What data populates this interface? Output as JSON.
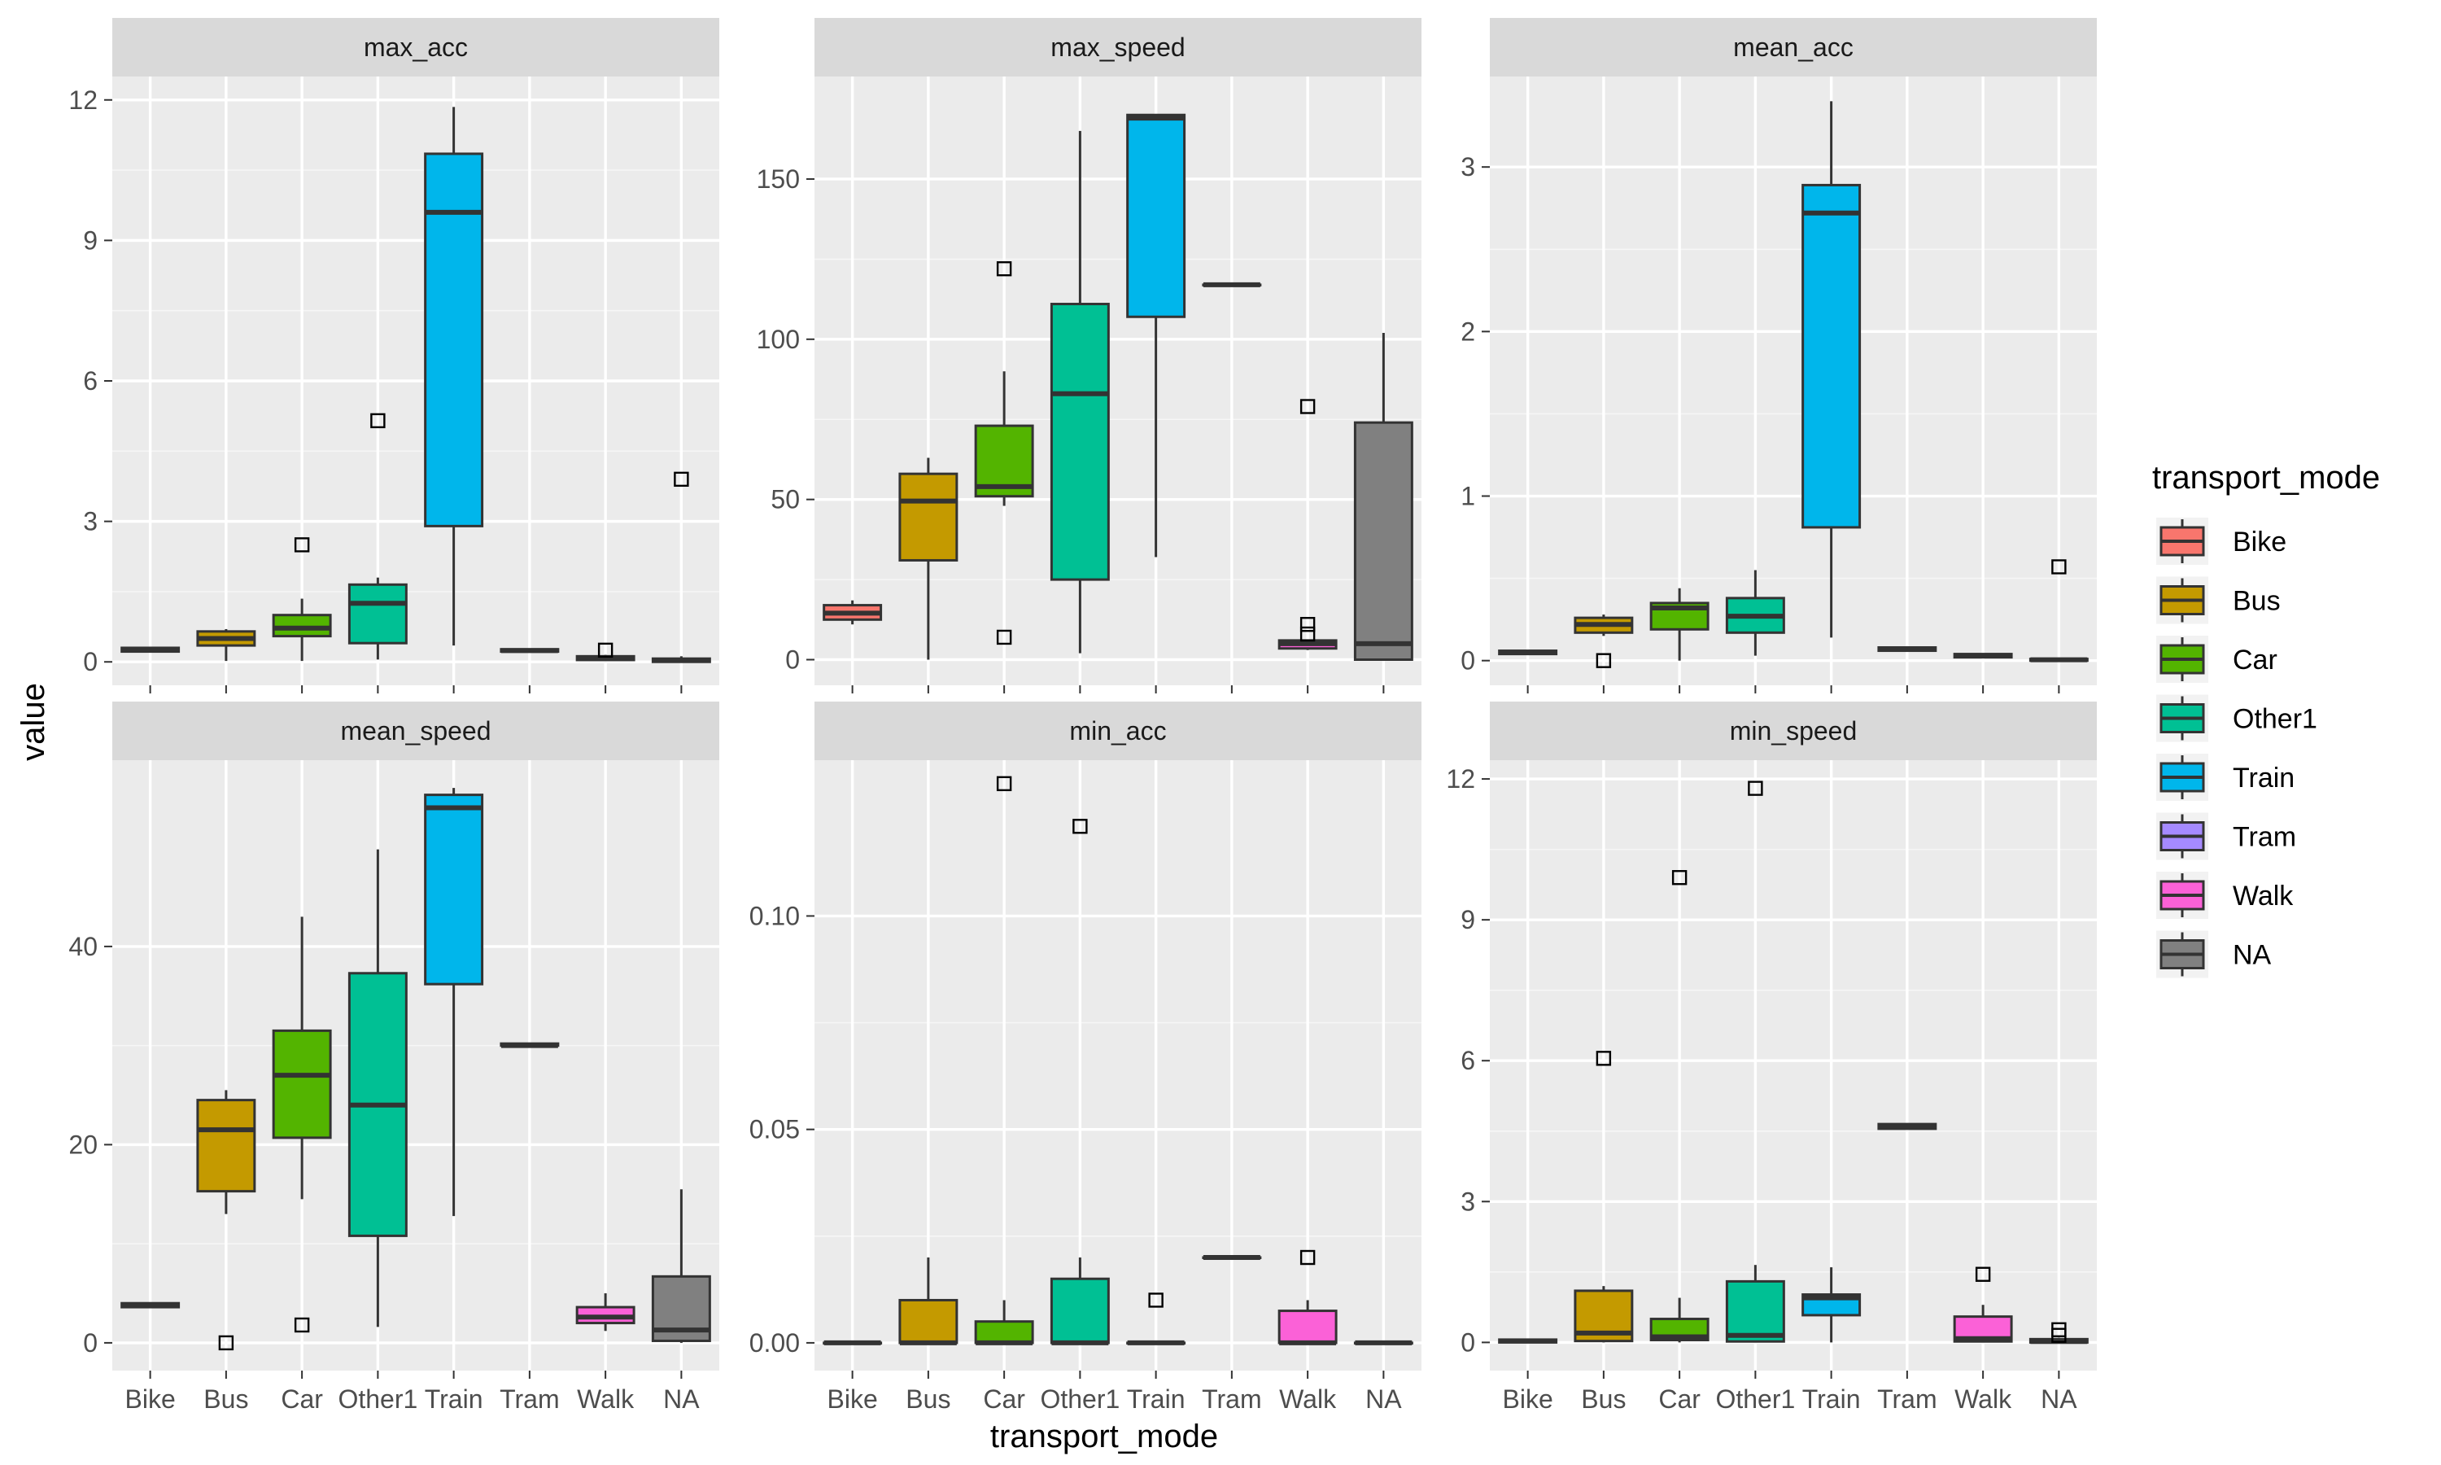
{
  "chart_data": {
    "type": "boxplot",
    "facet_layout": "facet_wrap, 2 rows x 3 columns, free y scales",
    "xlabel": "transport_mode",
    "ylabel": "value",
    "categories": [
      "Bike",
      "Bus",
      "Car",
      "Other1",
      "Train",
      "Tram",
      "Walk",
      "NA"
    ],
    "legend": {
      "title": "transport_mode",
      "placement": "right",
      "items": [
        {
          "label": "Bike",
          "color": "#F8766D"
        },
        {
          "label": "Bus",
          "color": "#C49A00"
        },
        {
          "label": "Car",
          "color": "#53B400"
        },
        {
          "label": "Other1",
          "color": "#00C094"
        },
        {
          "label": "Train",
          "color": "#00B6EB"
        },
        {
          "label": "Tram",
          "color": "#A58AFF"
        },
        {
          "label": "Walk",
          "color": "#FB61D7"
        },
        {
          "label": "NA",
          "color": "#808080"
        }
      ]
    },
    "style": {
      "panel_background": "#EBEBEB",
      "strip_background": "#D9D9D9",
      "grid_major": "#FFFFFF",
      "box_outline": "#333333",
      "grid": true
    },
    "panels": [
      {
        "title": "max_acc",
        "ylim": [
          -0.5,
          12.5
        ],
        "yticks": [
          0,
          3,
          6,
          9,
          12
        ],
        "yticklabels": [
          "0",
          "3",
          "6",
          "9",
          "12"
        ],
        "boxes": [
          {
            "mode": "Bike",
            "q1": 0.22,
            "median": 0.27,
            "q3": 0.3,
            "whisker_low": 0.22,
            "whisker_high": 0.3,
            "outliers": []
          },
          {
            "mode": "Bus",
            "q1": 0.35,
            "median": 0.5,
            "q3": 0.65,
            "whisker_low": 0.02,
            "whisker_high": 0.7,
            "outliers": []
          },
          {
            "mode": "Car",
            "q1": 0.55,
            "median": 0.72,
            "q3": 1.0,
            "whisker_low": 0.02,
            "whisker_high": 1.35,
            "outliers": [
              2.5
            ]
          },
          {
            "mode": "Other1",
            "q1": 0.4,
            "median": 1.25,
            "q3": 1.65,
            "whisker_low": 0.05,
            "whisker_high": 1.8,
            "outliers": [
              5.15
            ]
          },
          {
            "mode": "Train",
            "q1": 2.9,
            "median": 9.6,
            "q3": 10.85,
            "whisker_low": 0.35,
            "whisker_high": 11.85,
            "outliers": []
          },
          {
            "mode": "Tram",
            "q1": 0.22,
            "median": 0.24,
            "q3": 0.27,
            "whisker_low": 0.22,
            "whisker_high": 0.27,
            "outliers": []
          },
          {
            "mode": "Walk",
            "q1": 0.04,
            "median": 0.08,
            "q3": 0.12,
            "whisker_low": 0.02,
            "whisker_high": 0.15,
            "outliers": [
              0.25
            ]
          },
          {
            "mode": "NA",
            "q1": 0.0,
            "median": 0.03,
            "q3": 0.07,
            "whisker_low": 0.0,
            "whisker_high": 0.12,
            "outliers": [
              3.9
            ]
          }
        ]
      },
      {
        "title": "max_speed",
        "ylim": [
          -8,
          182
        ],
        "yticks": [
          0,
          50,
          100,
          150
        ],
        "yticklabels": [
          "0",
          "50",
          "100",
          "150"
        ],
        "boxes": [
          {
            "mode": "Bike",
            "q1": 12.5,
            "median": 14.5,
            "q3": 17.0,
            "whisker_low": 11.0,
            "whisker_high": 18.5,
            "outliers": []
          },
          {
            "mode": "Bus",
            "q1": 31,
            "median": 49.5,
            "q3": 58,
            "whisker_low": 0,
            "whisker_high": 63,
            "outliers": []
          },
          {
            "mode": "Car",
            "q1": 51,
            "median": 54,
            "q3": 73,
            "whisker_low": 48,
            "whisker_high": 90,
            "outliers": [
              7,
              122
            ]
          },
          {
            "mode": "Other1",
            "q1": 25,
            "median": 83,
            "q3": 111,
            "whisker_low": 2,
            "whisker_high": 165,
            "outliers": []
          },
          {
            "mode": "Train",
            "q1": 107,
            "median": 169,
            "q3": 170,
            "whisker_low": 32,
            "whisker_high": 170,
            "outliers": []
          },
          {
            "mode": "Tram",
            "q1": 117,
            "median": 117,
            "q3": 117,
            "whisker_low": 117,
            "whisker_high": 117,
            "outliers": []
          },
          {
            "mode": "Walk",
            "q1": 3.5,
            "median": 5,
            "q3": 6,
            "whisker_low": 3,
            "whisker_high": 6,
            "outliers": [
              8,
              11,
              79
            ]
          },
          {
            "mode": "NA",
            "q1": 0,
            "median": 5,
            "q3": 74,
            "whisker_low": 0,
            "whisker_high": 102,
            "outliers": []
          }
        ]
      },
      {
        "title": "mean_acc",
        "ylim": [
          -0.15,
          3.55
        ],
        "yticks": [
          0,
          1,
          2,
          3
        ],
        "yticklabels": [
          "0",
          "1",
          "2",
          "3"
        ],
        "boxes": [
          {
            "mode": "Bike",
            "q1": 0.04,
            "median": 0.05,
            "q3": 0.06,
            "whisker_low": 0.04,
            "whisker_high": 0.06,
            "outliers": []
          },
          {
            "mode": "Bus",
            "q1": 0.17,
            "median": 0.22,
            "q3": 0.26,
            "whisker_low": 0.15,
            "whisker_high": 0.28,
            "outliers": [
              0.0
            ]
          },
          {
            "mode": "Car",
            "q1": 0.19,
            "median": 0.32,
            "q3": 0.35,
            "whisker_low": 0.0,
            "whisker_high": 0.44,
            "outliers": []
          },
          {
            "mode": "Other1",
            "q1": 0.17,
            "median": 0.27,
            "q3": 0.38,
            "whisker_low": 0.03,
            "whisker_high": 0.55,
            "outliers": []
          },
          {
            "mode": "Train",
            "q1": 0.81,
            "median": 2.72,
            "q3": 2.89,
            "whisker_low": 0.14,
            "whisker_high": 3.4,
            "outliers": []
          },
          {
            "mode": "Tram",
            "q1": 0.06,
            "median": 0.07,
            "q3": 0.08,
            "whisker_low": 0.06,
            "whisker_high": 0.08,
            "outliers": []
          },
          {
            "mode": "Walk",
            "q1": 0.02,
            "median": 0.03,
            "q3": 0.04,
            "whisker_low": 0.02,
            "whisker_high": 0.04,
            "outliers": []
          },
          {
            "mode": "NA",
            "q1": 0.0,
            "median": 0.005,
            "q3": 0.01,
            "whisker_low": 0.0,
            "whisker_high": 0.01,
            "outliers": [
              0.57
            ]
          }
        ]
      },
      {
        "title": "mean_speed",
        "ylim": [
          -2.8,
          58.8
        ],
        "yticks": [
          0,
          20,
          40
        ],
        "yticklabels": [
          "0",
          "20",
          "40"
        ],
        "boxes": [
          {
            "mode": "Bike",
            "q1": 3.6,
            "median": 3.8,
            "q3": 4.0,
            "whisker_low": 3.6,
            "whisker_high": 4.0,
            "outliers": []
          },
          {
            "mode": "Bus",
            "q1": 15.3,
            "median": 21.5,
            "q3": 24.5,
            "whisker_low": 13.0,
            "whisker_high": 25.5,
            "outliers": [
              0.0
            ]
          },
          {
            "mode": "Car",
            "q1": 20.7,
            "median": 27.0,
            "q3": 31.5,
            "whisker_low": 14.5,
            "whisker_high": 43.0,
            "outliers": [
              1.8
            ]
          },
          {
            "mode": "Other1",
            "q1": 10.8,
            "median": 24.0,
            "q3": 37.3,
            "whisker_low": 1.6,
            "whisker_high": 49.8,
            "outliers": []
          },
          {
            "mode": "Train",
            "q1": 36.2,
            "median": 54.0,
            "q3": 55.3,
            "whisker_low": 12.8,
            "whisker_high": 56.0,
            "outliers": []
          },
          {
            "mode": "Tram",
            "q1": 30.0,
            "median": 30.0,
            "q3": 30.2,
            "whisker_low": 30.0,
            "whisker_high": 30.2,
            "outliers": []
          },
          {
            "mode": "Walk",
            "q1": 2.0,
            "median": 2.6,
            "q3": 3.6,
            "whisker_low": 1.2,
            "whisker_high": 5.0,
            "outliers": []
          },
          {
            "mode": "NA",
            "q1": 0.2,
            "median": 1.3,
            "q3": 6.7,
            "whisker_low": 0.0,
            "whisker_high": 15.5,
            "outliers": []
          }
        ]
      },
      {
        "title": "min_acc",
        "ylim": [
          -0.0065,
          0.1365
        ],
        "yticks": [
          0.0,
          0.05,
          0.1
        ],
        "yticklabels": [
          "0.00",
          "0.05",
          "0.10"
        ],
        "boxes": [
          {
            "mode": "Bike",
            "q1": 0.0,
            "median": 0.0,
            "q3": 0.0,
            "whisker_low": 0.0,
            "whisker_high": 0.0,
            "outliers": []
          },
          {
            "mode": "Bus",
            "q1": 0.0,
            "median": 0.0,
            "q3": 0.01,
            "whisker_low": 0.0,
            "whisker_high": 0.02,
            "outliers": []
          },
          {
            "mode": "Car",
            "q1": 0.0,
            "median": 0.0,
            "q3": 0.005,
            "whisker_low": 0.0,
            "whisker_high": 0.01,
            "outliers": [
              0.131
            ]
          },
          {
            "mode": "Other1",
            "q1": 0.0,
            "median": 0.0,
            "q3": 0.015,
            "whisker_low": 0.0,
            "whisker_high": 0.02,
            "outliers": [
              0.121
            ]
          },
          {
            "mode": "Train",
            "q1": 0.0,
            "median": 0.0,
            "q3": 0.0,
            "whisker_low": 0.0,
            "whisker_high": 0.0,
            "outliers": [
              0.01
            ]
          },
          {
            "mode": "Tram",
            "q1": 0.02,
            "median": 0.02,
            "q3": 0.02,
            "whisker_low": 0.02,
            "whisker_high": 0.02,
            "outliers": []
          },
          {
            "mode": "Walk",
            "q1": 0.0,
            "median": 0.0,
            "q3": 0.0075,
            "whisker_low": 0.0,
            "whisker_high": 0.01,
            "outliers": [
              0.02
            ]
          },
          {
            "mode": "NA",
            "q1": 0.0,
            "median": 0.0,
            "q3": 0.0,
            "whisker_low": 0.0,
            "whisker_high": 0.0,
            "outliers": []
          }
        ]
      },
      {
        "title": "min_speed",
        "ylim": [
          -0.6,
          12.4
        ],
        "yticks": [
          0,
          3,
          6,
          9,
          12
        ],
        "yticklabels": [
          "0",
          "3",
          "6",
          "9",
          "12"
        ],
        "boxes": [
          {
            "mode": "Bike",
            "q1": 0.0,
            "median": 0.03,
            "q3": 0.06,
            "whisker_low": 0.0,
            "whisker_high": 0.06,
            "outliers": []
          },
          {
            "mode": "Bus",
            "q1": 0.03,
            "median": 0.2,
            "q3": 1.1,
            "whisker_low": 0.0,
            "whisker_high": 1.2,
            "outliers": [
              6.05
            ]
          },
          {
            "mode": "Car",
            "q1": 0.05,
            "median": 0.12,
            "q3": 0.5,
            "whisker_low": 0.0,
            "whisker_high": 0.95,
            "outliers": [
              9.9
            ]
          },
          {
            "mode": "Other1",
            "q1": 0.02,
            "median": 0.15,
            "q3": 1.3,
            "whisker_low": 0.0,
            "whisker_high": 1.65,
            "outliers": [
              11.8
            ]
          },
          {
            "mode": "Train",
            "q1": 0.58,
            "median": 0.95,
            "q3": 1.02,
            "whisker_low": 0.0,
            "whisker_high": 1.6,
            "outliers": []
          },
          {
            "mode": "Tram",
            "q1": 4.55,
            "median": 4.6,
            "q3": 4.65,
            "whisker_low": 4.55,
            "whisker_high": 4.65,
            "outliers": []
          },
          {
            "mode": "Walk",
            "q1": 0.02,
            "median": 0.08,
            "q3": 0.55,
            "whisker_low": 0.0,
            "whisker_high": 0.8,
            "outliers": [
              1.45
            ]
          },
          {
            "mode": "NA",
            "q1": 0.0,
            "median": 0.02,
            "q3": 0.07,
            "whisker_low": 0.0,
            "whisker_high": 0.1,
            "outliers": [
              0.15,
              0.27
            ]
          }
        ]
      }
    ]
  }
}
